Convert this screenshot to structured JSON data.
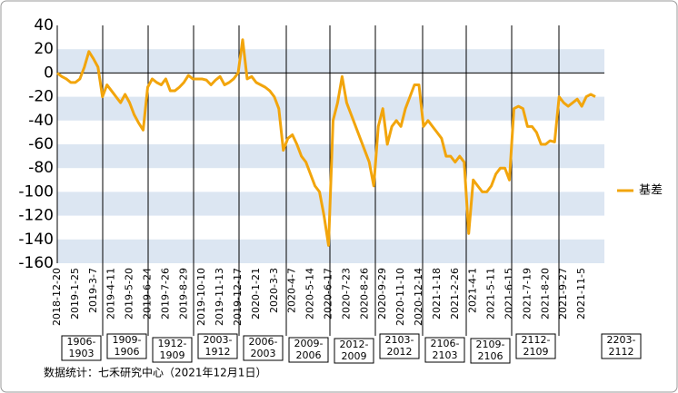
{
  "chart_data": {
    "type": "line",
    "categories": [
      "2018-12-20",
      null,
      null,
      null,
      "2019-1-25",
      null,
      null,
      null,
      "2019-3-7",
      null,
      null,
      null,
      "2019-4-11",
      null,
      null,
      null,
      "2019-5-20",
      null,
      null,
      null,
      "2019-6-24",
      null,
      null,
      null,
      "2019-7-26",
      null,
      null,
      null,
      "2019-8-29",
      null,
      null,
      null,
      "2019-10-10",
      null,
      null,
      null,
      "2019-11-13",
      null,
      null,
      null,
      "2019-12-17",
      null,
      null,
      null,
      "2020-1-21",
      null,
      null,
      null,
      "2020-3-3",
      null,
      null,
      null,
      "2020-4-7",
      null,
      null,
      null,
      "2020-5-14",
      null,
      null,
      null,
      "2020-6-17",
      null,
      null,
      null,
      "2020-7-23",
      null,
      null,
      null,
      "2020-8-26",
      null,
      null,
      null,
      "2020-9-29",
      null,
      null,
      null,
      "2020-11-10",
      null,
      null,
      null,
      "2020-12-14",
      null,
      null,
      null,
      "2021-1-18",
      null,
      null,
      null,
      "2021-2-26",
      null,
      null,
      null,
      "2021-4-1",
      null,
      null,
      null,
      "2021-5-11",
      null,
      null,
      null,
      "2021-6-15",
      null,
      null,
      null,
      "2021-7-19",
      null,
      null,
      null,
      "2021-8-20",
      null,
      null,
      null,
      "2021-9-27",
      null,
      null,
      null,
      "2021-11-5",
      null,
      null,
      null
    ],
    "series": [
      {
        "name": "基差",
        "color": "#f2a50c",
        "values": [
          0,
          -3,
          -5,
          -8,
          -8,
          -5,
          5,
          18,
          12,
          5,
          -20,
          -10,
          -15,
          -20,
          -25,
          -18,
          -25,
          -35,
          -42,
          -48,
          -12,
          -5,
          -8,
          -10,
          -5,
          -15,
          -15,
          -12,
          -8,
          -2,
          -5,
          -5,
          -5,
          -6,
          -10,
          -6,
          -3,
          -10,
          -8,
          -5,
          0,
          28,
          -5,
          -3,
          -8,
          -10,
          -12,
          -15,
          -20,
          -30,
          -65,
          -55,
          -52,
          -60,
          -70,
          -75,
          -85,
          -95,
          -100,
          -120,
          -145,
          -40,
          -25,
          -3,
          -25,
          -35,
          -45,
          -55,
          -65,
          -75,
          -95,
          -45,
          -30,
          -60,
          -45,
          -40,
          -45,
          -30,
          -20,
          -10,
          -10,
          -45,
          -40,
          -45,
          -50,
          -55,
          -70,
          -70,
          -75,
          -70,
          -75,
          -135,
          -90,
          -95,
          -100,
          -100,
          -95,
          -85,
          -80,
          -80,
          -90,
          -30,
          -28,
          -30,
          -45,
          -45,
          -50,
          -60,
          -60,
          -57,
          -58,
          -20,
          -25,
          -28,
          -25,
          -22,
          -28,
          -20,
          -18,
          -20
        ]
      }
    ],
    "ylim": [
      -160,
      40
    ],
    "yticks": [
      40,
      20,
      0,
      -20,
      -40,
      -60,
      -80,
      -100,
      -120,
      -140,
      -160
    ],
    "bands": true,
    "legend": "right",
    "annotations": [
      [
        "1906-",
        "1903"
      ],
      [
        "1909-",
        "1906"
      ],
      [
        "1912-",
        "1909"
      ],
      [
        "2003-",
        "1912"
      ],
      [
        "2006-",
        "2003"
      ],
      [
        "2009-",
        "2006"
      ],
      [
        "2012-",
        "2009"
      ],
      [
        "2103-",
        "2012"
      ],
      [
        "2106-",
        "2103"
      ],
      [
        "2109-",
        "2106"
      ],
      [
        "2112-",
        "2109"
      ],
      [
        "2203-",
        "2112"
      ]
    ],
    "footer": "数据统计：七禾研究中心（2021年12月1日）"
  }
}
